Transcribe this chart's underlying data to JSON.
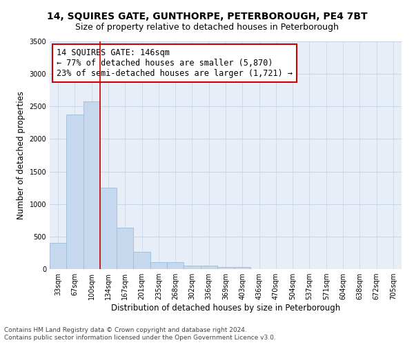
{
  "title": "14, SQUIRES GATE, GUNTHORPE, PETERBOROUGH, PE4 7BT",
  "subtitle": "Size of property relative to detached houses in Peterborough",
  "xlabel": "Distribution of detached houses by size in Peterborough",
  "ylabel": "Number of detached properties",
  "footnote1": "Contains HM Land Registry data © Crown copyright and database right 2024.",
  "footnote2": "Contains public sector information licensed under the Open Government Licence v3.0.",
  "bar_labels": [
    "33sqm",
    "67sqm",
    "100sqm",
    "134sqm",
    "167sqm",
    "201sqm",
    "235sqm",
    "268sqm",
    "302sqm",
    "336sqm",
    "369sqm",
    "403sqm",
    "436sqm",
    "470sqm",
    "504sqm",
    "537sqm",
    "571sqm",
    "604sqm",
    "638sqm",
    "672sqm",
    "705sqm"
  ],
  "bar_values": [
    400,
    2380,
    2580,
    1250,
    640,
    260,
    110,
    110,
    50,
    50,
    35,
    35,
    0,
    0,
    0,
    0,
    0,
    0,
    0,
    0,
    0
  ],
  "bar_color": "#c5d8ee",
  "bar_edge_color": "#9bbcd8",
  "property_line_x": 2.5,
  "property_label": "14 SQUIRES GATE: 146sqm",
  "annotation_line1": "← 77% of detached houses are smaller (5,870)",
  "annotation_line2": "23% of semi-detached houses are larger (1,721) →",
  "annotation_box_color": "#ffffff",
  "annotation_box_edge_color": "#cc0000",
  "vline_color": "#cc0000",
  "ylim": [
    0,
    3500
  ],
  "yticks": [
    0,
    500,
    1000,
    1500,
    2000,
    2500,
    3000,
    3500
  ],
  "grid_color": "#c8d4e8",
  "bg_color": "#e8eef8",
  "title_fontsize": 10,
  "subtitle_fontsize": 9,
  "axis_label_fontsize": 8.5,
  "tick_fontsize": 7,
  "annotation_fontsize": 8.5,
  "footnote_fontsize": 6.5
}
